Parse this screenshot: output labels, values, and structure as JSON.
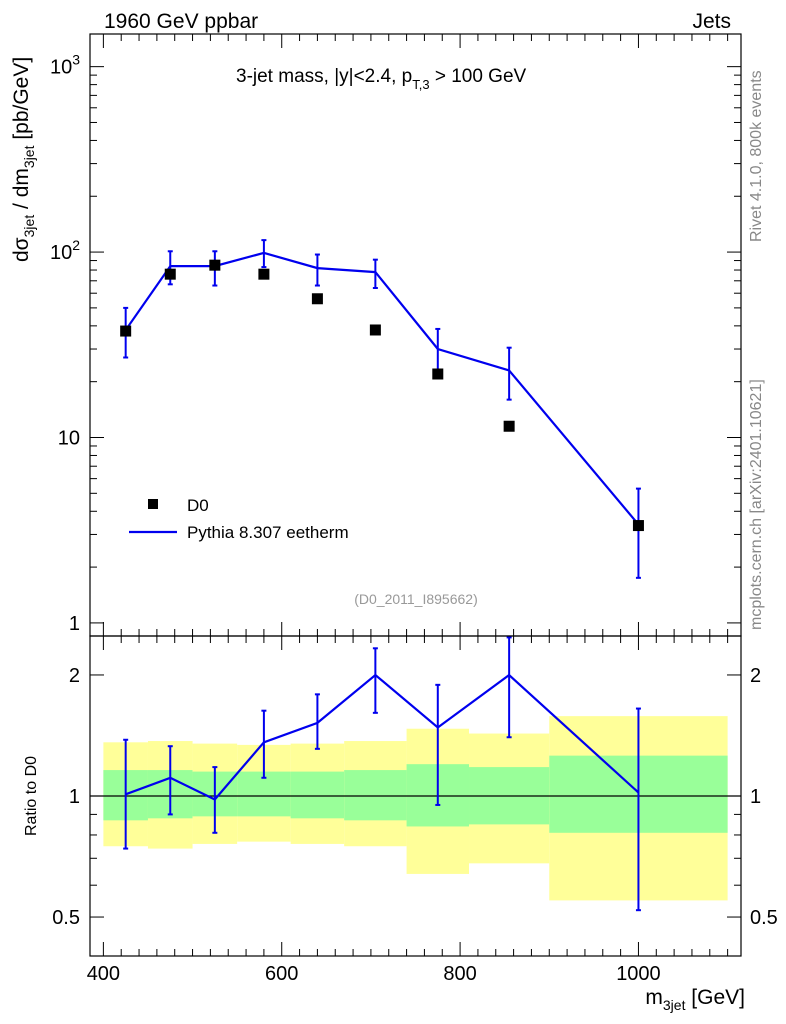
{
  "header": {
    "left": "1960 GeV ppbar",
    "right": "Jets"
  },
  "side_labels": {
    "rivet": "Rivet 4.1.0,  800k events",
    "mcplots": "mcplots.cern.ch [arXiv:2401.10621]"
  },
  "colors": {
    "mc": "#0000ee",
    "data": "#000000",
    "band_inner": "#99ff99",
    "band_outer": "#ffff99",
    "watermark": "#999999"
  },
  "chart_data": [
    {
      "type": "line",
      "panel": "main",
      "title": "3-jet mass, |y|<2.4, p",
      "title_sub": "T,3",
      "title_tail": " > 100 GeV",
      "ylabel_prefix": "dσ",
      "ylabel_sub1": "3jet",
      "ylabel_mid": " / dm",
      "ylabel_sub2": "3jet",
      "ylabel_tail": " [pb/GeV]",
      "yscale": "log",
      "ylim": [
        0.85,
        1500
      ],
      "xlim": [
        385,
        1115
      ],
      "y_ticks": [
        {
          "v": 1,
          "base": "1",
          "exp": ""
        },
        {
          "v": 10,
          "base": "10",
          "exp": ""
        },
        {
          "v": 100,
          "base": "10",
          "exp": "2"
        },
        {
          "v": 1000,
          "base": "10",
          "exp": "3"
        }
      ],
      "watermark": "(D0_2011_I895662)",
      "legend": [
        {
          "label": "D0",
          "kind": "marker"
        },
        {
          "label": "Pythia 8.307 eetherm",
          "kind": "line"
        }
      ],
      "series": [
        {
          "name": "D0",
          "kind": "points",
          "x": [
            425,
            475,
            525,
            580,
            640,
            705,
            775,
            855,
            1000
          ],
          "y": [
            37.5,
            76,
            85,
            76,
            56,
            38,
            22,
            11.5,
            3.35
          ]
        },
        {
          "name": "Pythia 8.307 eetherm",
          "kind": "histogram",
          "x": [
            425,
            475,
            525,
            580,
            640,
            705,
            775,
            855,
            1000
          ],
          "y": [
            38,
            84,
            84,
            99,
            82,
            78,
            30,
            23,
            3.4
          ],
          "err_lo": [
            11,
            17,
            18,
            16,
            16,
            14,
            8,
            7,
            1.65
          ],
          "err_hi": [
            12,
            17,
            17,
            17,
            15,
            13,
            8.5,
            7.5,
            1.9
          ]
        }
      ]
    },
    {
      "type": "line",
      "panel": "ratio",
      "ylabel": "Ratio to D0",
      "xlabel_prefix": "m",
      "xlabel_sub": "3jet",
      "xlabel_tail": " [GeV]",
      "yscale": "log",
      "ylim": [
        0.4,
        2.5
      ],
      "xlim": [
        385,
        1115
      ],
      "x_ticks": [
        "400",
        "600",
        "800",
        "1000"
      ],
      "y_ticks": [
        "0.5",
        "1",
        "2"
      ],
      "bins": [
        [
          400,
          450
        ],
        [
          450,
          500
        ],
        [
          500,
          550
        ],
        [
          550,
          610
        ],
        [
          610,
          670
        ],
        [
          670,
          740
        ],
        [
          740,
          810
        ],
        [
          810,
          900
        ],
        [
          900,
          1100
        ]
      ],
      "band_inner": [
        [
          0.87,
          1.16
        ],
        [
          0.88,
          1.16
        ],
        [
          0.89,
          1.15
        ],
        [
          0.89,
          1.15
        ],
        [
          0.88,
          1.15
        ],
        [
          0.87,
          1.16
        ],
        [
          0.84,
          1.2
        ],
        [
          0.85,
          1.18
        ],
        [
          0.81,
          1.26
        ]
      ],
      "band_outer": [
        [
          0.75,
          1.36
        ],
        [
          0.74,
          1.37
        ],
        [
          0.76,
          1.35
        ],
        [
          0.77,
          1.34
        ],
        [
          0.76,
          1.35
        ],
        [
          0.75,
          1.37
        ],
        [
          0.64,
          1.47
        ],
        [
          0.68,
          1.43
        ],
        [
          0.55,
          1.58
        ]
      ],
      "ratio": {
        "x": [
          425,
          475,
          525,
          580,
          640,
          705,
          775,
          855,
          1000
        ],
        "y": [
          1.01,
          1.11,
          0.98,
          1.36,
          1.52,
          2.0,
          1.48,
          2.0,
          1.02
        ],
        "err_lo": [
          0.27,
          0.21,
          0.17,
          0.25,
          0.21,
          0.39,
          0.53,
          0.6,
          0.5
        ],
        "err_hi": [
          0.37,
          0.22,
          0.2,
          0.27,
          0.27,
          0.33,
          0.41,
          0.48,
          0.63
        ]
      }
    }
  ]
}
